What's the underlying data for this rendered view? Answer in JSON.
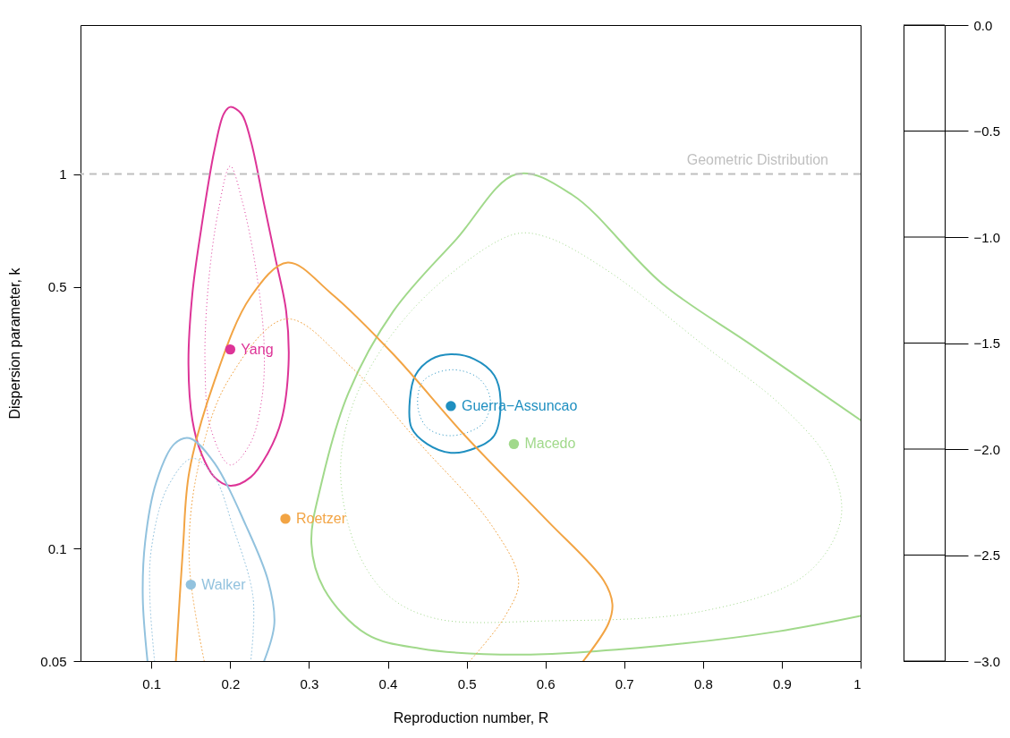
{
  "chart_data": {
    "type": "scatter",
    "xlabel": "Reproduction number, R",
    "ylabel": "Dispersion parameter, k",
    "xlim": [
      0.01,
      1
    ],
    "xticks": [
      0.1,
      0.2,
      0.3,
      0.4,
      0.5,
      0.6,
      0.7,
      0.8,
      0.9,
      1
    ],
    "ylim": [
      0.05,
      2.5
    ],
    "yticks": [
      0.05,
      0.1,
      0.5,
      1
    ],
    "log": "y",
    "grid": false,
    "y2lim": [
      -3,
      0
    ],
    "y2ticks": [
      {
        "value": -3,
        "label": "−3.0"
      },
      {
        "value": -2.5,
        "label": "−2.5"
      },
      {
        "value": -2,
        "label": "−2.0"
      },
      {
        "value": -1.5,
        "label": "−1.5"
      },
      {
        "value": -1,
        "label": "−1.0"
      },
      {
        "value": -0.5,
        "label": "−0.5"
      },
      {
        "value": 0,
        "label": "0.0"
      }
    ],
    "ref_lines": [
      {
        "axis": "y",
        "value": 1,
        "label": "Geometric Distribution",
        "color": "#bfbfbf",
        "line_style": "dashed"
      }
    ],
    "series": [
      {
        "type": "line",
        "line_style": "solid",
        "color": "#a1d98b",
        "x": [
          1.0,
          0.861,
          0.748,
          0.634,
          0.564,
          0.487,
          0.407,
          0.35,
          0.316,
          0.303,
          0.319,
          0.373,
          0.441,
          0.566,
          0.748,
          0.895,
          1.0
        ],
        "values": [
          0.22,
          0.35,
          0.51,
          0.88,
          1.0,
          0.67,
          0.43,
          0.26,
          0.15,
          0.103,
          0.078,
          0.059,
          0.054,
          0.052,
          0.055,
          0.06,
          0.066
        ]
      },
      {
        "type": "line",
        "line_style": "solid",
        "color": "#f2a444",
        "x": [
          0.131,
          0.14,
          0.148,
          0.18,
          0.226,
          0.273,
          0.328,
          0.407,
          0.498,
          0.6,
          0.674,
          0.685,
          0.68,
          0.648
        ],
        "values": [
          0.05,
          0.1,
          0.16,
          0.28,
          0.47,
          0.58,
          0.48,
          0.33,
          0.2,
          0.12,
          0.082,
          0.071,
          0.063,
          0.05
        ]
      },
      {
        "type": "line",
        "line_style": "dotted",
        "color": "#f2a444",
        "x": [
          0.167,
          0.148,
          0.158,
          0.197,
          0.271,
          0.35,
          0.441,
          0.532,
          0.566,
          0.549,
          0.504
        ],
        "values": [
          0.05,
          0.092,
          0.16,
          0.28,
          0.41,
          0.31,
          0.19,
          0.115,
          0.082,
          0.066,
          0.05
        ]
      },
      {
        "type": "line",
        "line_style": "solid",
        "color": "#92c2de",
        "x": [
          0.095,
          0.089,
          0.092,
          0.106,
          0.129,
          0.148,
          0.18,
          0.22,
          0.248,
          0.256,
          0.243
        ],
        "values": [
          0.05,
          0.074,
          0.104,
          0.15,
          0.19,
          0.197,
          0.169,
          0.115,
          0.082,
          0.063,
          0.05
        ]
      },
      {
        "type": "line",
        "line_style": "dotted",
        "color": "#92c2de",
        "x": [
          0.104,
          0.098,
          0.1,
          0.12,
          0.152,
          0.18,
          0.203,
          0.229,
          0.226
        ],
        "values": [
          0.05,
          0.074,
          0.1,
          0.145,
          0.174,
          0.155,
          0.115,
          0.074,
          0.05
        ]
      },
      {
        "type": "scatter",
        "name": "Yang",
        "marker": "circle",
        "color": "#dd3497",
        "x": [
          0.2
        ],
        "values": [
          0.34
        ]
      },
      {
        "type": "scatter",
        "name": "Guerra−Assuncao",
        "marker": "circle",
        "color": "#1f8fc0",
        "x": [
          0.48
        ],
        "values": [
          0.24
        ]
      },
      {
        "type": "scatter",
        "name": "Macedo",
        "marker": "circle",
        "color": "#a1d98b",
        "x": [
          0.56
        ],
        "values": [
          0.19
        ]
      },
      {
        "type": "scatter",
        "name": "Roetzer",
        "marker": "circle",
        "color": "#f2a444",
        "x": [
          0.27
        ],
        "values": [
          0.12
        ]
      },
      {
        "type": "scatter",
        "name": "Walker",
        "marker": "circle",
        "color": "#92c2de",
        "x": [
          0.15
        ],
        "values": [
          0.08
        ]
      }
    ]
  }
}
